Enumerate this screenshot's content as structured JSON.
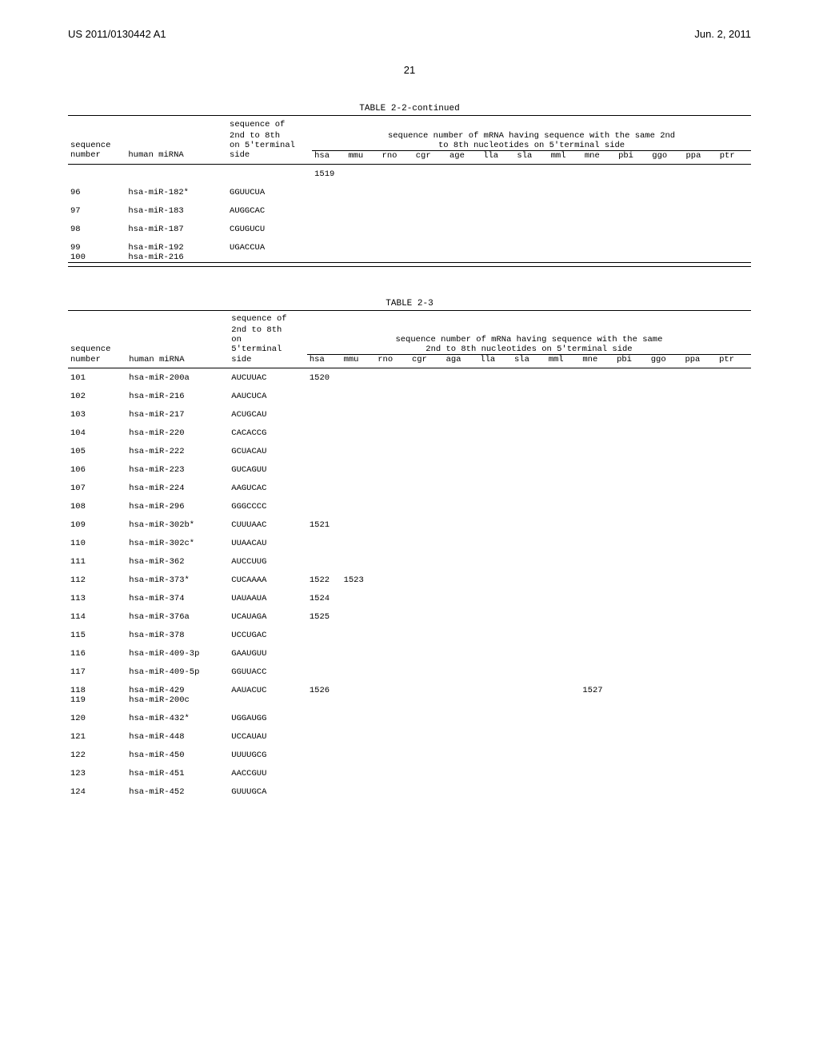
{
  "header": {
    "doc_id": "US 2011/0130442 A1",
    "date": "Jun. 2, 2011"
  },
  "page_number": "21",
  "table1": {
    "title": "TABLE 2-2-continued",
    "col_headers_top": {
      "sequence": "sequence",
      "seed_line1": "sequence of",
      "seed_line2": "2nd to 8th",
      "seed_line3": "on 5'terminal",
      "right_line1": "sequence number of mRNA having sequence with the same 2nd",
      "right_line2": "to 8th nucleotides on 5'terminal side"
    },
    "col_headers_bottom": {
      "number": "number",
      "human_mirna": "human miRNA",
      "side": "side",
      "species": [
        "hsa",
        "mmu",
        "rno",
        "cgr",
        "age",
        "lla",
        "sla",
        "mml",
        "mne",
        "pbi",
        "ggo",
        "ppa",
        "ptr"
      ]
    },
    "first_value": "1519",
    "rows": [
      {
        "num": "96",
        "mirna": "hsa-miR-182*",
        "seed": "GGUUCUA"
      },
      {
        "num": "97",
        "mirna": "hsa-miR-183",
        "seed": "AUGGCAC"
      },
      {
        "num": "98",
        "mirna": "hsa-miR-187",
        "seed": "CGUGUCU"
      },
      {
        "num": "99",
        "mirna": "hsa-miR-192",
        "seed": "UGACCUA"
      },
      {
        "num": "100",
        "mirna": "hsa-miR-216",
        "seed": ""
      }
    ]
  },
  "table2": {
    "title": "TABLE 2-3",
    "col_headers_top": {
      "sequence": "sequence",
      "seed_line1": "sequence of",
      "seed_line2": "2nd to 8th",
      "seed_line3": "on",
      "seed_line4": "5'terminal",
      "right_line1": "sequence number of mRNa having sequence with the same",
      "right_line2": "2nd to 8th nucleotides on 5'terminal side"
    },
    "col_headers_bottom": {
      "number": "number",
      "human_mirna": "human miRNA",
      "side": "side",
      "species": [
        "hsa",
        "mmu",
        "rno",
        "cgr",
        "aga",
        "lla",
        "sla",
        "mml",
        "mne",
        "pbi",
        "ggo",
        "ppa",
        "ptr"
      ]
    },
    "rows": [
      {
        "num": "101",
        "mirna": "hsa-miR-200a",
        "seed": "AUCUUAC",
        "hsa": "1520"
      },
      {
        "num": "102",
        "mirna": "hsa-miR-216",
        "seed": "AAUCUCA"
      },
      {
        "num": "103",
        "mirna": "hsa-miR-217",
        "seed": "ACUGCAU"
      },
      {
        "num": "104",
        "mirna": "hsa-miR-220",
        "seed": "CACACCG"
      },
      {
        "num": "105",
        "mirna": "hsa-miR-222",
        "seed": "GCUACAU"
      },
      {
        "num": "106",
        "mirna": "hsa-miR-223",
        "seed": "GUCAGUU"
      },
      {
        "num": "107",
        "mirna": "hsa-miR-224",
        "seed": "AAGUCAC"
      },
      {
        "num": "108",
        "mirna": "hsa-miR-296",
        "seed": "GGGCCCC"
      },
      {
        "num": "109",
        "mirna": "hsa-miR-302b*",
        "seed": "CUUUAAC",
        "hsa": "1521"
      },
      {
        "num": "110",
        "mirna": "hsa-miR-302c*",
        "seed": "UUAACAU"
      },
      {
        "num": "111",
        "mirna": "hsa-miR-362",
        "seed": "AUCCUUG"
      },
      {
        "num": "112",
        "mirna": "hsa-miR-373*",
        "seed": "CUCAAAA",
        "hsa": "1522",
        "mmu": "1523"
      },
      {
        "num": "113",
        "mirna": "hsa-miR-374",
        "seed": "UAUAAUA",
        "hsa": "1524"
      },
      {
        "num": "114",
        "mirna": "hsa-miR-376a",
        "seed": "UCAUAGA",
        "hsa": "1525"
      },
      {
        "num": "115",
        "mirna": "hsa-miR-378",
        "seed": "UCCUGAC"
      },
      {
        "num": "116",
        "mirna": "hsa-miR-409-3p",
        "seed": "GAAUGUU"
      },
      {
        "num": "117",
        "mirna": "hsa-miR-409-5p",
        "seed": "GGUUACC"
      },
      {
        "num": "118",
        "mirna": "hsa-miR-429",
        "seed": "AAUACUC",
        "hsa": "1526",
        "mne": "1527"
      },
      {
        "num": "119",
        "mirna": "hsa-miR-200c",
        "seed": ""
      },
      {
        "num": "120",
        "mirna": "hsa-miR-432*",
        "seed": "UGGAUGG"
      },
      {
        "num": "121",
        "mirna": "hsa-miR-448",
        "seed": "UCCAUAU"
      },
      {
        "num": "122",
        "mirna": "hsa-miR-450",
        "seed": "UUUUGCG"
      },
      {
        "num": "123",
        "mirna": "hsa-miR-451",
        "seed": "AACCGUU"
      },
      {
        "num": "124",
        "mirna": "hsa-miR-452",
        "seed": "GUUUGCA"
      }
    ]
  }
}
